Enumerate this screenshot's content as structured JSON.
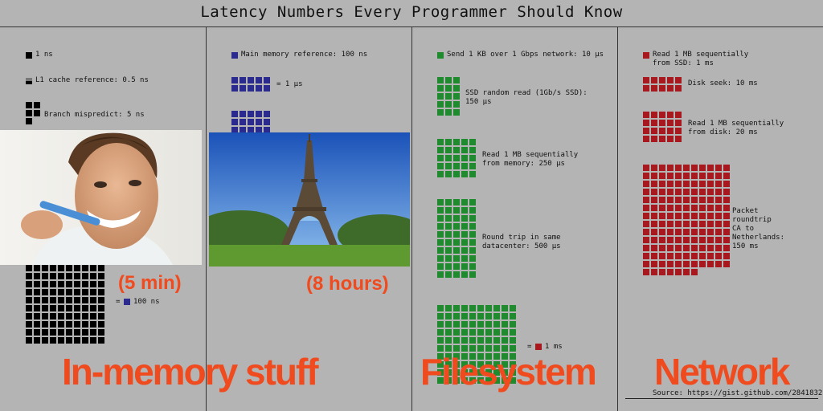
{
  "title": "Latency Numbers Every Programmer Should Know",
  "columns": {
    "memory": {
      "l1": "1 ns",
      "l1_ref": "L1 cache reference: 0.5 ns",
      "branch": "Branch mispredict: 5 ns",
      "eq_100ns": "= ",
      "ns100": "100 ns"
    },
    "ram": {
      "main_mem": "Main memory reference: 100 ns",
      "eq_1us": "= 1 µs"
    },
    "fs": {
      "send": "Send 1 KB over 1 Gbps network: 10 µs",
      "ssd_random": "SSD random read (1Gb/s SSD):\n150 µs",
      "read_mem": "Read 1 MB sequentially\nfrom memory: 250 µs",
      "roundtrip": "Round trip in same\ndatacenter: 500 µs",
      "eq_1ms": "= ",
      "ms1": "1 ms"
    },
    "net": {
      "read_ssd": "Read 1 MB sequentially\nfrom SSD: 1 ms",
      "disk_seek": "Disk seek: 10 ms",
      "read_disk": "Read 1 MB sequentially\nfrom disk: 20 ms",
      "packet": "Packet\nroundtrip\nCA to\nNetherlands:\n150 ms"
    }
  },
  "overlays": {
    "in_memory": "In-memory stuff",
    "filesystem": "Filesystem",
    "network": "Network",
    "five_min": "(5 min)",
    "eight_hours": "(8 hours)"
  },
  "source": "Source: https://gist.github.com/2841832",
  "photos": {
    "person": "person brushing teeth photo",
    "eiffel": "eiffel tower photo"
  },
  "colors": {
    "background": "#b4b4b4",
    "memory": "#000000",
    "ram": "#2b2b8f",
    "filesystem": "#1f8a2e",
    "network": "#a8191f",
    "overlay_text": "#f04a1f"
  }
}
